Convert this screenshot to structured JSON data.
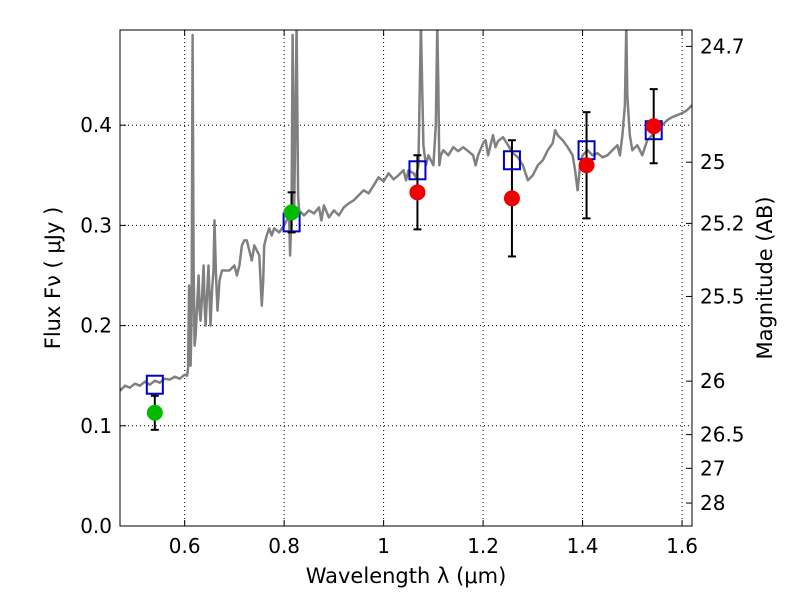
{
  "chart_data": {
    "type": "scatter",
    "title": "",
    "xlabel": "Wavelength  λ (μm)",
    "ylabel": "Flux  Fν  ( μJy )",
    "y2label": "Magnitude (AB)",
    "xlim": [
      0.47,
      1.62
    ],
    "ylim": [
      0.0,
      0.495
    ],
    "grid": true,
    "grid_style": "dotted",
    "x_ticks": [
      {
        "value": 0.6,
        "label": "0.6"
      },
      {
        "value": 0.8,
        "label": "0.8"
      },
      {
        "value": 1.0,
        "label": "1"
      },
      {
        "value": 1.2,
        "label": "1.2"
      },
      {
        "value": 1.4,
        "label": "1.4"
      },
      {
        "value": 1.6,
        "label": "1.6"
      }
    ],
    "y_ticks": [
      {
        "value": 0.0,
        "label": "0.0"
      },
      {
        "value": 0.1,
        "label": "0.1"
      },
      {
        "value": 0.2,
        "label": "0.2"
      },
      {
        "value": 0.3,
        "label": "0.3"
      },
      {
        "value": 0.4,
        "label": "0.4"
      }
    ],
    "y2_ticks": [
      {
        "mag": 24.7,
        "label": "24.7"
      },
      {
        "mag": 25.0,
        "label": "25"
      },
      {
        "mag": 25.2,
        "label": "25.2"
      },
      {
        "mag": 25.5,
        "label": "25.5"
      },
      {
        "mag": 26.0,
        "label": "26"
      },
      {
        "mag": 26.5,
        "label": "26.5"
      },
      {
        "mag": 27.0,
        "label": "27"
      },
      {
        "mag": 28.0,
        "label": "28"
      }
    ],
    "series": [
      {
        "kind": "line",
        "color": "#808080",
        "points": [
          [
            0.47,
            0.135
          ],
          [
            0.48,
            0.14
          ],
          [
            0.49,
            0.138
          ],
          [
            0.5,
            0.142
          ],
          [
            0.51,
            0.14
          ],
          [
            0.52,
            0.144
          ],
          [
            0.53,
            0.141
          ],
          [
            0.54,
            0.145
          ],
          [
            0.55,
            0.143
          ],
          [
            0.56,
            0.147
          ],
          [
            0.57,
            0.146
          ],
          [
            0.58,
            0.149
          ],
          [
            0.59,
            0.147
          ],
          [
            0.6,
            0.151
          ],
          [
            0.605,
            0.15
          ],
          [
            0.607,
            0.158
          ],
          [
            0.608,
            0.2
          ],
          [
            0.609,
            0.24
          ],
          [
            0.61,
            0.21
          ],
          [
            0.611,
            0.18
          ],
          [
            0.612,
            0.16
          ],
          [
            0.614,
            0.21
          ],
          [
            0.616,
            0.49
          ],
          [
            0.618,
            0.26
          ],
          [
            0.62,
            0.18
          ],
          [
            0.622,
            0.19
          ],
          [
            0.625,
            0.22
          ],
          [
            0.628,
            0.25
          ],
          [
            0.63,
            0.215
          ],
          [
            0.632,
            0.205
          ],
          [
            0.635,
            0.23
          ],
          [
            0.638,
            0.26
          ],
          [
            0.64,
            0.22
          ],
          [
            0.642,
            0.2
          ],
          [
            0.645,
            0.23
          ],
          [
            0.648,
            0.26
          ],
          [
            0.65,
            0.23
          ],
          [
            0.652,
            0.2
          ],
          [
            0.655,
            0.235
          ],
          [
            0.658,
            0.255
          ],
          [
            0.66,
            0.305
          ],
          [
            0.663,
            0.25
          ],
          [
            0.666,
            0.215
          ],
          [
            0.67,
            0.245
          ],
          [
            0.675,
            0.255
          ],
          [
            0.68,
            0.255
          ],
          [
            0.69,
            0.255
          ],
          [
            0.7,
            0.26
          ],
          [
            0.705,
            0.25
          ],
          [
            0.71,
            0.26
          ],
          [
            0.715,
            0.28
          ],
          [
            0.72,
            0.285
          ],
          [
            0.725,
            0.285
          ],
          [
            0.73,
            0.275
          ],
          [
            0.735,
            0.265
          ],
          [
            0.74,
            0.28
          ],
          [
            0.745,
            0.275
          ],
          [
            0.75,
            0.27
          ],
          [
            0.755,
            0.22
          ],
          [
            0.758,
            0.245
          ],
          [
            0.76,
            0.28
          ],
          [
            0.765,
            0.29
          ],
          [
            0.77,
            0.297
          ],
          [
            0.775,
            0.29
          ],
          [
            0.78,
            0.297
          ],
          [
            0.79,
            0.293
          ],
          [
            0.8,
            0.3
          ],
          [
            0.805,
            0.305
          ],
          [
            0.81,
            0.31
          ],
          [
            0.812,
            0.27
          ],
          [
            0.815,
            0.32
          ],
          [
            0.817,
            0.49
          ],
          [
            0.82,
            0.31
          ],
          [
            0.825,
            0.5
          ],
          [
            0.828,
            0.33
          ],
          [
            0.83,
            0.315
          ],
          [
            0.84,
            0.31
          ],
          [
            0.85,
            0.315
          ],
          [
            0.86,
            0.312
          ],
          [
            0.87,
            0.318
          ],
          [
            0.875,
            0.305
          ],
          [
            0.88,
            0.32
          ],
          [
            0.89,
            0.308
          ],
          [
            0.9,
            0.315
          ],
          [
            0.91,
            0.31
          ],
          [
            0.92,
            0.318
          ],
          [
            0.93,
            0.322
          ],
          [
            0.94,
            0.325
          ],
          [
            0.95,
            0.33
          ],
          [
            0.96,
            0.335
          ],
          [
            0.97,
            0.332
          ],
          [
            0.98,
            0.34
          ],
          [
            0.99,
            0.348
          ],
          [
            1.0,
            0.344
          ],
          [
            1.01,
            0.352
          ],
          [
            1.02,
            0.346
          ],
          [
            1.03,
            0.35
          ],
          [
            1.04,
            0.355
          ],
          [
            1.045,
            0.345
          ],
          [
            1.05,
            0.355
          ],
          [
            1.06,
            0.352
          ],
          [
            1.065,
            0.348
          ],
          [
            1.07,
            0.36
          ],
          [
            1.075,
            0.5
          ],
          [
            1.08,
            0.38
          ],
          [
            1.085,
            0.36
          ],
          [
            1.09,
            0.37
          ],
          [
            1.1,
            0.36
          ],
          [
            1.105,
            0.4
          ],
          [
            1.108,
            0.5
          ],
          [
            1.11,
            0.44
          ],
          [
            1.112,
            0.36
          ],
          [
            1.115,
            0.37
          ],
          [
            1.12,
            0.375
          ],
          [
            1.13,
            0.37
          ],
          [
            1.14,
            0.378
          ],
          [
            1.15,
            0.374
          ],
          [
            1.16,
            0.378
          ],
          [
            1.17,
            0.374
          ],
          [
            1.18,
            0.37
          ],
          [
            1.185,
            0.36
          ],
          [
            1.19,
            0.37
          ],
          [
            1.2,
            0.382
          ],
          [
            1.205,
            0.385
          ],
          [
            1.21,
            0.37
          ],
          [
            1.22,
            0.39
          ],
          [
            1.225,
            0.378
          ],
          [
            1.23,
            0.384
          ],
          [
            1.24,
            0.388
          ],
          [
            1.25,
            0.38
          ],
          [
            1.26,
            0.372
          ],
          [
            1.27,
            0.368
          ],
          [
            1.28,
            0.36
          ],
          [
            1.29,
            0.345
          ],
          [
            1.3,
            0.35
          ],
          [
            1.31,
            0.36
          ],
          [
            1.32,
            0.365
          ],
          [
            1.33,
            0.375
          ],
          [
            1.34,
            0.382
          ],
          [
            1.345,
            0.395
          ],
          [
            1.35,
            0.39
          ],
          [
            1.36,
            0.385
          ],
          [
            1.37,
            0.378
          ],
          [
            1.38,
            0.37
          ],
          [
            1.385,
            0.355
          ],
          [
            1.39,
            0.335
          ],
          [
            1.395,
            0.36
          ],
          [
            1.4,
            0.37
          ],
          [
            1.41,
            0.375
          ],
          [
            1.42,
            0.37
          ],
          [
            1.43,
            0.372
          ],
          [
            1.44,
            0.368
          ],
          [
            1.45,
            0.37
          ],
          [
            1.46,
            0.375
          ],
          [
            1.47,
            0.38
          ],
          [
            1.475,
            0.37
          ],
          [
            1.48,
            0.39
          ],
          [
            1.485,
            0.42
          ],
          [
            1.488,
            0.5
          ],
          [
            1.49,
            0.43
          ],
          [
            1.495,
            0.39
          ],
          [
            1.5,
            0.375
          ],
          [
            1.51,
            0.38
          ],
          [
            1.52,
            0.37
          ],
          [
            1.53,
            0.385
          ],
          [
            1.54,
            0.39
          ],
          [
            1.55,
            0.395
          ],
          [
            1.56,
            0.4
          ],
          [
            1.57,
            0.405
          ],
          [
            1.58,
            0.408
          ],
          [
            1.59,
            0.41
          ],
          [
            1.6,
            0.412
          ],
          [
            1.61,
            0.415
          ],
          [
            1.62,
            0.42
          ]
        ]
      },
      {
        "kind": "markers",
        "marker": "open-square",
        "color": "#0000cc",
        "points": [
          [
            0.54,
            0.141
          ],
          [
            0.815,
            0.303
          ],
          [
            1.068,
            0.355
          ],
          [
            1.258,
            0.365
          ],
          [
            1.408,
            0.375
          ],
          [
            1.543,
            0.395
          ]
        ]
      },
      {
        "kind": "markers",
        "marker": "filled-circle",
        "color": "#00bb00",
        "points": [
          [
            0.54,
            0.113,
            0.017
          ],
          [
            0.815,
            0.313,
            0.02
          ]
        ]
      },
      {
        "kind": "markers",
        "marker": "filled-circle",
        "color": "#ee0000",
        "points": [
          [
            1.068,
            0.333,
            0.037
          ],
          [
            1.258,
            0.327,
            0.058
          ],
          [
            1.408,
            0.36,
            0.053
          ],
          [
            1.543,
            0.399,
            0.037
          ]
        ]
      }
    ]
  }
}
